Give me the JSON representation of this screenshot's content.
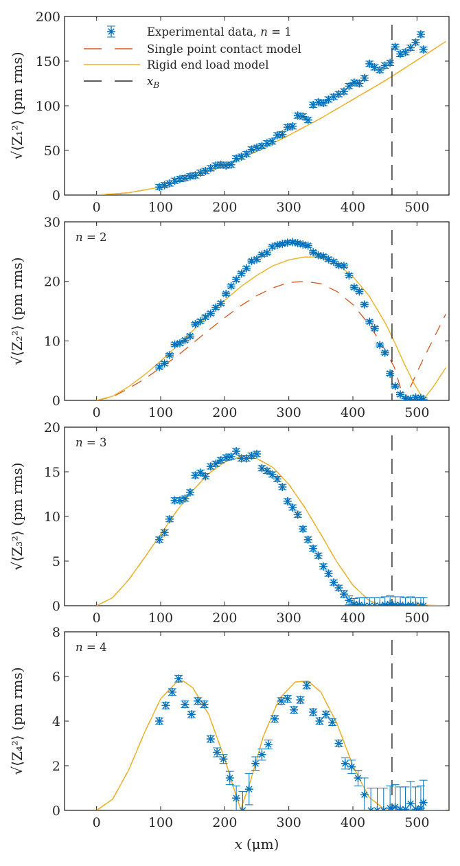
{
  "chart_data": {
    "type": "scatter",
    "layout": "4 vertically stacked panels sharing x axis",
    "xlabel": "x (μm)",
    "xlim": [
      -50,
      550
    ],
    "xticks": [
      0,
      100,
      200,
      300,
      400,
      500
    ],
    "x_B": 461,
    "colors": {
      "data": "#0072BD",
      "single_point": "#D95319",
      "rigid_end": "#EDB120",
      "x_B": "#262626",
      "axes": "#262626"
    },
    "legend": {
      "placement": "top-left (panel 1)",
      "entries": [
        {
          "key": "data",
          "label": "Experimental data, n = 1"
        },
        {
          "key": "single_point",
          "label": "Single point contact model"
        },
        {
          "key": "rigid_end",
          "label": "Rigid end load model"
        },
        {
          "key": "x_B",
          "label": "x_B"
        }
      ]
    },
    "panels": [
      {
        "n": 1,
        "label": "",
        "ylabel": "√⟨Z₁²⟩ (pm rms)",
        "ylim": [
          0,
          200
        ],
        "yticks": [
          0,
          50,
          100,
          150,
          200
        ],
        "data": {
          "x": [
            98,
            106,
            114,
            122,
            130,
            138,
            146,
            154,
            162,
            170,
            178,
            186,
            194,
            202,
            210,
            218,
            226,
            234,
            242,
            250,
            258,
            266,
            274,
            282,
            290,
            298,
            306,
            314,
            322,
            330,
            338,
            346,
            354,
            362,
            370,
            378,
            386,
            394,
            402,
            410,
            418,
            426,
            434,
            442,
            450,
            458,
            466,
            474,
            482,
            490,
            498,
            506,
            510
          ],
          "y": [
            9,
            11,
            13,
            16,
            18,
            19,
            21,
            22,
            25,
            27,
            30,
            33,
            34,
            33,
            34,
            41,
            43,
            46,
            51,
            53,
            55,
            58,
            60,
            67,
            68,
            76,
            77,
            89,
            88,
            84,
            101,
            104,
            103,
            107,
            110,
            113,
            116,
            122,
            126,
            125,
            131,
            147,
            143,
            140,
            145,
            148,
            166,
            158,
            160,
            165,
            171,
            180,
            163
          ],
          "err": [
            3,
            3,
            3,
            3,
            3,
            3,
            3,
            3,
            3,
            3,
            3,
            3,
            3,
            3,
            3,
            3,
            3,
            3,
            3,
            3,
            3,
            3,
            3,
            3,
            3,
            3,
            3,
            3,
            3,
            3,
            3,
            3,
            3,
            3,
            3,
            3,
            3,
            3,
            3,
            3,
            3,
            3,
            3,
            3,
            3,
            3,
            3,
            3,
            3,
            3,
            3,
            3,
            3
          ]
        },
        "single_point": {
          "x": [
            0,
            50,
            100,
            150,
            200,
            250,
            300,
            350,
            400,
            450,
            500,
            545
          ],
          "y": [
            0,
            2.5,
            9,
            20,
            33,
            49,
            67,
            86,
            107,
            128,
            151,
            172
          ]
        },
        "rigid_end": {
          "x": [
            0,
            50,
            100,
            150,
            200,
            250,
            300,
            350,
            400,
            450,
            500,
            545
          ],
          "y": [
            0,
            2.5,
            9,
            20,
            33,
            49,
            67,
            86,
            107,
            128,
            151,
            172
          ]
        }
      },
      {
        "n": 2,
        "label": "n = 2",
        "ylabel": "√⟨Z₂²⟩ (pm rms)",
        "ylim": [
          0,
          30
        ],
        "yticks": [
          0,
          10,
          20,
          30
        ],
        "data": {
          "x": [
            98,
            106,
            114,
            122,
            130,
            138,
            146,
            154,
            162,
            170,
            178,
            186,
            194,
            202,
            210,
            218,
            226,
            234,
            242,
            250,
            258,
            266,
            274,
            282,
            290,
            298,
            306,
            314,
            322,
            330,
            338,
            346,
            354,
            362,
            370,
            378,
            386,
            394,
            402,
            410,
            418,
            426,
            434,
            442,
            450,
            458,
            466,
            474,
            482,
            490,
            498,
            506,
            510
          ],
          "y": [
            5.6,
            6.2,
            7.6,
            9.4,
            9.6,
            10.1,
            10.8,
            12.8,
            13.3,
            14.0,
            14.6,
            15.6,
            16.3,
            17.9,
            19.2,
            20.3,
            21.3,
            22.2,
            23.4,
            23.7,
            24.5,
            24.8,
            25.8,
            26.1,
            26.3,
            26.5,
            26.6,
            26.4,
            26.2,
            26.0,
            24.9,
            24.4,
            24.2,
            23.7,
            23.3,
            22.7,
            22.6,
            21.0,
            19.0,
            18.3,
            16.1,
            13.2,
            12.1,
            9.3,
            8.0,
            4.5,
            2.4,
            1.0,
            0.3,
            0.2,
            0.5,
            0.4,
            0.1
          ],
          "err": [
            0.3,
            0.3,
            0.3,
            0.3,
            0.3,
            0.3,
            0.3,
            0.3,
            0.3,
            0.3,
            0.3,
            0.3,
            0.3,
            0.3,
            0.3,
            0.3,
            0.3,
            0.3,
            0.3,
            0.3,
            0.3,
            0.3,
            0.3,
            0.3,
            0.3,
            0.3,
            0.3,
            0.3,
            0.3,
            0.3,
            0.3,
            0.3,
            0.3,
            0.3,
            0.3,
            0.3,
            0.3,
            0.3,
            0.3,
            0.3,
            0.3,
            0.3,
            0.3,
            0.3,
            0.3,
            0.3,
            0.3,
            0.3,
            0.3,
            0.3,
            0.3,
            0.3,
            0.3
          ]
        },
        "single_point": {
          "x": [
            0,
            25,
            50,
            75,
            100,
            125,
            150,
            175,
            200,
            225,
            250,
            275,
            300,
            325,
            350,
            375,
            400,
            425,
            450,
            465,
            480,
            495,
            510,
            525,
            545
          ],
          "y": [
            0,
            0.6,
            2.0,
            3.6,
            5.5,
            7.4,
            9.6,
            11.8,
            13.9,
            15.9,
            17.6,
            18.9,
            19.8,
            20.0,
            19.6,
            18.3,
            16.1,
            12.8,
            8.5,
            5.5,
            0.0,
            3.5,
            7.0,
            10.2,
            14.5
          ]
        },
        "rigid_end": {
          "x": [
            0,
            25,
            50,
            75,
            100,
            125,
            150,
            175,
            200,
            225,
            250,
            275,
            300,
            325,
            340,
            350,
            375,
            400,
            425,
            450,
            465,
            480,
            495,
            510,
            525,
            545
          ],
          "y": [
            0,
            0.7,
            2.3,
            4.3,
            6.6,
            9.1,
            11.7,
            14.3,
            16.8,
            19.1,
            21.0,
            22.6,
            23.6,
            24.1,
            24.1,
            23.9,
            22.9,
            20.8,
            17.6,
            13.1,
            9.8,
            6.2,
            2.9,
            0.2,
            2.2,
            5.5
          ]
        }
      },
      {
        "n": 3,
        "label": "n = 3",
        "ylabel": "√⟨Z₃²⟩ (pm rms)",
        "ylim": [
          0,
          20
        ],
        "yticks": [
          0,
          5,
          10,
          15,
          20
        ],
        "data": {
          "x": [
            98,
            106,
            114,
            122,
            130,
            138,
            146,
            154,
            162,
            170,
            178,
            186,
            194,
            202,
            210,
            218,
            226,
            234,
            242,
            250,
            258,
            266,
            274,
            282,
            290,
            298,
            306,
            314,
            322,
            330,
            338,
            346,
            354,
            362,
            370,
            378,
            386,
            394,
            402,
            410,
            418,
            426,
            434,
            442,
            450,
            458,
            466,
            474,
            482,
            490,
            498,
            506,
            510
          ],
          "y": [
            7.4,
            8.2,
            9.7,
            11.8,
            11.8,
            12.0,
            12.7,
            14.6,
            14.9,
            14.5,
            15.6,
            15.9,
            16.3,
            16.6,
            16.7,
            17.3,
            16.5,
            16.5,
            16.8,
            17.0,
            15.4,
            15.1,
            14.7,
            14.2,
            13.3,
            11.7,
            11.0,
            10.2,
            8.6,
            7.4,
            6.4,
            5.6,
            4.4,
            3.6,
            2.6,
            2.0,
            1.3,
            0.6,
            0.2,
            0.1,
            0.0,
            0.0,
            0.0,
            0.0,
            0.1,
            0.2,
            0.1,
            0.1,
            0.0,
            0.1,
            0.0,
            0.0,
            0.0
          ],
          "err": [
            0.3,
            0.3,
            0.3,
            0.3,
            0.3,
            0.3,
            0.3,
            0.3,
            0.3,
            0.3,
            0.3,
            0.3,
            0.3,
            0.3,
            0.3,
            0.3,
            0.3,
            0.3,
            0.3,
            0.3,
            0.3,
            0.3,
            0.3,
            0.3,
            0.3,
            0.3,
            0.3,
            0.3,
            0.3,
            0.3,
            0.3,
            0.3,
            0.3,
            0.3,
            0.3,
            0.3,
            0.4,
            0.5,
            0.6,
            0.8,
            0.9,
            0.9,
            0.9,
            0.9,
            0.9,
            0.9,
            0.9,
            0.9,
            0.9,
            0.9,
            0.9,
            0.9,
            0.9
          ]
        },
        "single_point": {
          "x": [
            0,
            25,
            50,
            75,
            100,
            125,
            150,
            175,
            200,
            225,
            250,
            275,
            300,
            325,
            350,
            375,
            400,
            425,
            440,
            450,
            475,
            500,
            545
          ],
          "y": [
            0,
            0.9,
            2.9,
            5.4,
            8.0,
            10.6,
            12.9,
            14.8,
            16.1,
            16.7,
            16.5,
            15.5,
            13.6,
            11.0,
            8.0,
            4.9,
            2.3,
            0.6,
            0.15,
            0.1,
            0.2,
            0.1,
            0.0
          ]
        },
        "rigid_end": {
          "x": [
            0,
            25,
            50,
            75,
            100,
            125,
            150,
            175,
            200,
            225,
            250,
            275,
            300,
            325,
            350,
            375,
            400,
            425,
            440,
            450,
            475,
            500,
            545
          ],
          "y": [
            0,
            0.9,
            2.9,
            5.4,
            8.0,
            10.6,
            12.9,
            14.8,
            16.1,
            16.7,
            16.5,
            15.5,
            13.6,
            11.0,
            8.0,
            4.9,
            2.3,
            0.6,
            0.15,
            0.1,
            0.2,
            0.1,
            0.0
          ]
        }
      },
      {
        "n": 4,
        "label": "n = 4",
        "ylabel": "√⟨Z₄²⟩ (pm rms)",
        "ylim": [
          0,
          8
        ],
        "yticks": [
          0,
          2,
          4,
          6,
          8
        ],
        "data": {
          "x": [
            98,
            108,
            118,
            128,
            138,
            148,
            158,
            168,
            178,
            188,
            198,
            208,
            218,
            228,
            238,
            248,
            258,
            268,
            278,
            288,
            298,
            308,
            318,
            328,
            338,
            348,
            358,
            368,
            378,
            388,
            398,
            408,
            418,
            428,
            438,
            448,
            458,
            466,
            474,
            482,
            490,
            498,
            506,
            510
          ],
          "y": [
            4.0,
            4.7,
            5.3,
            5.9,
            4.75,
            4.3,
            4.9,
            4.75,
            3.2,
            2.6,
            2.3,
            1.45,
            0.55,
            0.0,
            0.95,
            2.1,
            2.5,
            2.95,
            4.1,
            4.9,
            5.0,
            4.5,
            4.95,
            5.6,
            4.4,
            4.0,
            4.3,
            3.95,
            3.0,
            2.1,
            1.95,
            1.45,
            0.7,
            0.0,
            0.0,
            0.0,
            0.1,
            0.15,
            0.05,
            0.05,
            0.3,
            0.05,
            0.1,
            0.35
          ],
          "err": [
            0.15,
            0.15,
            0.15,
            0.15,
            0.15,
            0.15,
            0.15,
            0.15,
            0.15,
            0.2,
            0.2,
            0.3,
            0.55,
            0.85,
            0.7,
            0.3,
            0.25,
            0.2,
            0.15,
            0.15,
            0.15,
            0.15,
            0.15,
            0.15,
            0.15,
            0.15,
            0.15,
            0.15,
            0.15,
            0.25,
            0.3,
            0.35,
            0.75,
            1.0,
            1.0,
            1.0,
            1.0,
            1.0,
            1.0,
            1.0,
            1.0,
            1.0,
            1.0,
            1.0
          ]
        },
        "single_point": {
          "x": [
            0,
            25,
            50,
            75,
            100,
            125,
            135,
            150,
            175,
            200,
            215,
            225,
            240,
            260,
            285,
            310,
            330,
            350,
            375,
            400,
            425,
            450,
            460,
            475,
            500,
            545
          ],
          "y": [
            0,
            0.5,
            1.8,
            3.5,
            5.0,
            5.75,
            5.8,
            5.5,
            4.3,
            2.3,
            0.9,
            0.05,
            1.3,
            3.3,
            5.0,
            5.75,
            5.8,
            5.3,
            3.9,
            2.0,
            0.6,
            0.03,
            0.0,
            0.02,
            0.0,
            0.0
          ]
        },
        "rigid_end": {
          "x": [
            0,
            25,
            50,
            75,
            100,
            125,
            135,
            150,
            175,
            200,
            215,
            225,
            240,
            260,
            285,
            310,
            330,
            350,
            375,
            400,
            425,
            450,
            460,
            475,
            500,
            545
          ],
          "y": [
            0,
            0.5,
            1.8,
            3.5,
            5.0,
            5.75,
            5.8,
            5.5,
            4.3,
            2.3,
            0.9,
            0.05,
            1.3,
            3.3,
            5.0,
            5.75,
            5.8,
            5.3,
            3.9,
            2.0,
            0.6,
            0.03,
            0.0,
            0.02,
            0.0,
            0.0
          ]
        }
      }
    ]
  }
}
